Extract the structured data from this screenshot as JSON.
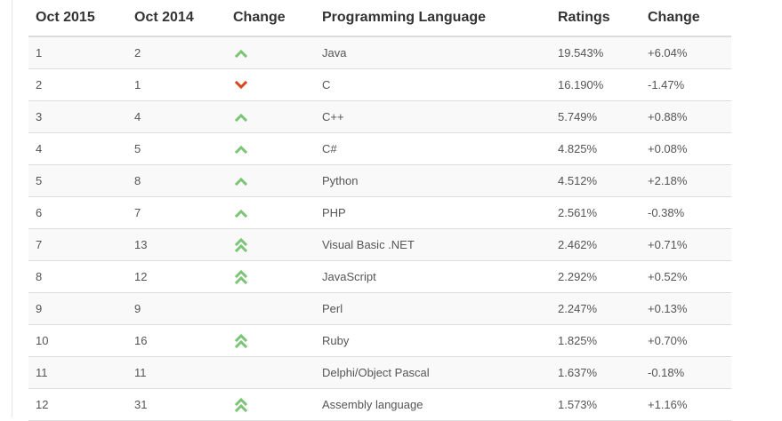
{
  "headers": [
    "Oct 2015",
    "Oct 2014",
    "Change",
    "Programming Language",
    "Ratings",
    "Change"
  ],
  "colors": {
    "up": "#7cc576",
    "down": "#d9451c"
  },
  "rows": [
    {
      "oct2015": "1",
      "oct2014": "2",
      "trend": "up",
      "language": "Java",
      "rating": "19.543%",
      "change": "+6.04%"
    },
    {
      "oct2015": "2",
      "oct2014": "1",
      "trend": "down",
      "language": "C",
      "rating": "16.190%",
      "change": "-1.47%"
    },
    {
      "oct2015": "3",
      "oct2014": "4",
      "trend": "up",
      "language": "C++",
      "rating": "5.749%",
      "change": "+0.88%"
    },
    {
      "oct2015": "4",
      "oct2014": "5",
      "trend": "up",
      "language": "C#",
      "rating": "4.825%",
      "change": "+0.08%"
    },
    {
      "oct2015": "5",
      "oct2014": "8",
      "trend": "up",
      "language": "Python",
      "rating": "4.512%",
      "change": "+2.18%"
    },
    {
      "oct2015": "6",
      "oct2014": "7",
      "trend": "up",
      "language": "PHP",
      "rating": "2.561%",
      "change": "-0.38%"
    },
    {
      "oct2015": "7",
      "oct2014": "13",
      "trend": "up-double",
      "language": "Visual Basic .NET",
      "rating": "2.462%",
      "change": "+0.71%"
    },
    {
      "oct2015": "8",
      "oct2014": "12",
      "trend": "up-double",
      "language": "JavaScript",
      "rating": "2.292%",
      "change": "+0.52%"
    },
    {
      "oct2015": "9",
      "oct2014": "9",
      "trend": "none",
      "language": "Perl",
      "rating": "2.247%",
      "change": "+0.13%"
    },
    {
      "oct2015": "10",
      "oct2014": "16",
      "trend": "up-double",
      "language": "Ruby",
      "rating": "1.825%",
      "change": "+0.70%"
    },
    {
      "oct2015": "11",
      "oct2014": "11",
      "trend": "none",
      "language": "Delphi/Object Pascal",
      "rating": "1.637%",
      "change": "-0.18%"
    },
    {
      "oct2015": "12",
      "oct2014": "31",
      "trend": "up-double",
      "language": "Assembly language",
      "rating": "1.573%",
      "change": "+1.16%"
    }
  ]
}
